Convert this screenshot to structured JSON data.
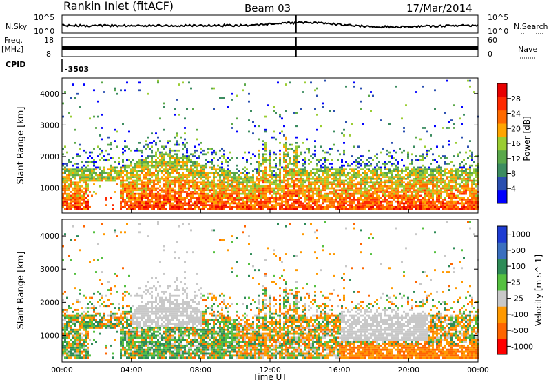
{
  "header": {
    "station": "Rankin Inlet (fitACF)",
    "beam": "Beam 03",
    "date": "17/Mar/2014"
  },
  "sky_panel": {
    "left_label": "N.Sky",
    "left_ticks": [
      "10^5",
      "10^0"
    ],
    "right_label": "N.Search",
    "right_ticks": [
      "10^5",
      "10^0"
    ]
  },
  "freq_panel": {
    "left_label_top": "Freq.",
    "left_label_unit": "[MHz]",
    "left_ticks": [
      "18",
      "8"
    ],
    "right_label": "Nave",
    "right_ticks": [
      "60",
      "0"
    ]
  },
  "cpid": {
    "label": "CPID",
    "value": "-3503"
  },
  "colors": {
    "power_scale": [
      "#0000ff",
      "#2a4fb0",
      "#3c8c60",
      "#5aa84a",
      "#9acd32",
      "#ffa500",
      "#ff6a00",
      "#ff2a00",
      "#e80000"
    ],
    "velocity_scale": [
      "#1e3cd2",
      "#3a6fbf",
      "#2e8b57",
      "#55c040",
      "#c8c8c8",
      "#ff9900",
      "#ff6600",
      "#ff0000"
    ]
  },
  "chart_data": [
    {
      "type": "heatmap",
      "name": "power",
      "ylabel": "Slant Range [km]",
      "yticks": [
        1000,
        2000,
        3000,
        4000
      ],
      "ylim": [
        200,
        4500
      ],
      "xlim": [
        0,
        24
      ],
      "colorbar_label": "Power [dB]",
      "colorbar_ticks": [
        4,
        8,
        12,
        16,
        20,
        24,
        28
      ],
      "colorbar_range": [
        0,
        32
      ]
    },
    {
      "type": "heatmap",
      "name": "velocity",
      "ylabel": "Slant Range [km]",
      "yticks": [
        1000,
        2000,
        3000,
        4000
      ],
      "ylim": [
        200,
        4500
      ],
      "xlim": [
        0,
        24
      ],
      "xlabel": "Time UT",
      "xticks": [
        "00:00",
        "04:00",
        "08:00",
        "12:00",
        "16:00",
        "20:00",
        "00:00"
      ],
      "colorbar_label": "Velocity [m s^-1]",
      "colorbar_ticks": [
        "1000",
        "500",
        "100",
        "25",
        "-25",
        "-100",
        "-500",
        "-1000"
      ]
    }
  ]
}
